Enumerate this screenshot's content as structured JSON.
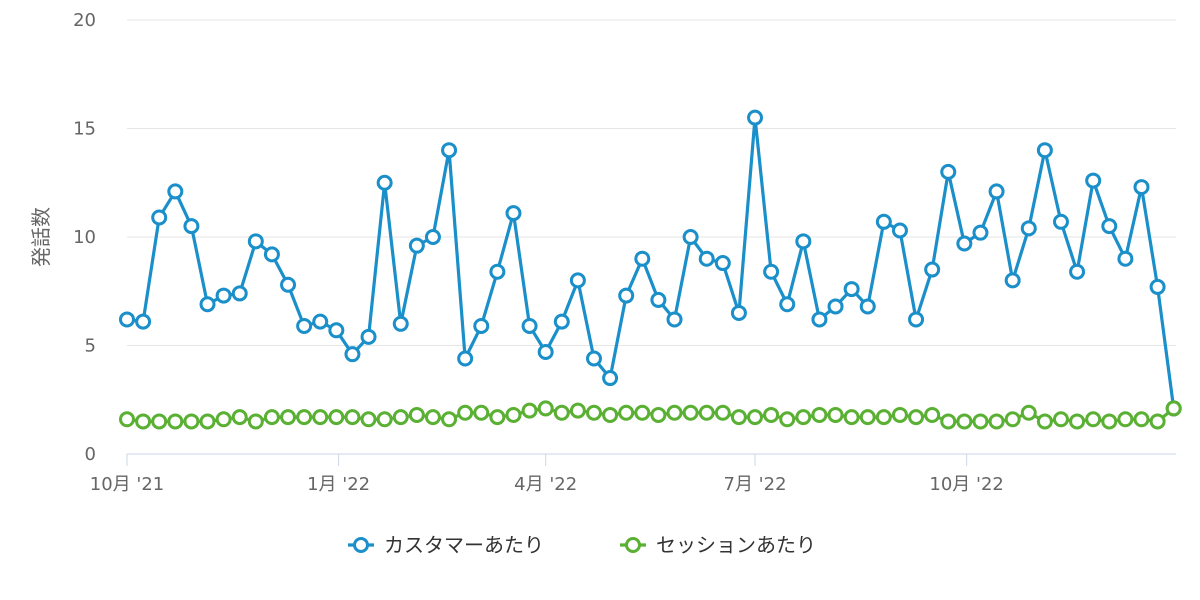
{
  "chart_data": {
    "type": "line",
    "ylabel": "発話数",
    "xlabel": "",
    "ylim": [
      0,
      20
    ],
    "y_ticks": [
      "0",
      "5",
      "10",
      "15",
      "20"
    ],
    "x_range": [
      "2021-10-01",
      "2022-12-31"
    ],
    "x_ticks": [
      {
        "label": "10月 '21",
        "date": "2021-10-01"
      },
      {
        "label": "1月 '22",
        "date": "2022-01-01"
      },
      {
        "label": "4月 '22",
        "date": "2022-04-01"
      },
      {
        "label": "7月 '22",
        "date": "2022-07-01"
      },
      {
        "label": "10月 '22",
        "date": "2022-10-01"
      }
    ],
    "grid": true,
    "legend_position": "bottom-center",
    "x": [
      "2021-10-01",
      "2021-10-08",
      "2021-10-15",
      "2021-10-22",
      "2021-10-29",
      "2021-11-05",
      "2021-11-12",
      "2021-11-19",
      "2021-11-26",
      "2021-12-03",
      "2021-12-10",
      "2021-12-17",
      "2021-12-24",
      "2021-12-31",
      "2022-01-07",
      "2022-01-14",
      "2022-01-21",
      "2022-01-28",
      "2022-02-04",
      "2022-02-11",
      "2022-02-18",
      "2022-02-25",
      "2022-03-04",
      "2022-03-11",
      "2022-03-18",
      "2022-03-25",
      "2022-04-01",
      "2022-04-08",
      "2022-04-15",
      "2022-04-22",
      "2022-04-29",
      "2022-05-06",
      "2022-05-13",
      "2022-05-20",
      "2022-05-27",
      "2022-06-03",
      "2022-06-10",
      "2022-06-17",
      "2022-06-24",
      "2022-07-01",
      "2022-07-08",
      "2022-07-15",
      "2022-07-22",
      "2022-07-29",
      "2022-08-05",
      "2022-08-12",
      "2022-08-19",
      "2022-08-26",
      "2022-09-02",
      "2022-09-09",
      "2022-09-16",
      "2022-09-23",
      "2022-09-30",
      "2022-10-07",
      "2022-10-14",
      "2022-10-21",
      "2022-10-28",
      "2022-11-04",
      "2022-11-11",
      "2022-11-18",
      "2022-11-25",
      "2022-12-02",
      "2022-12-09",
      "2022-12-16",
      "2022-12-23",
      "2022-12-30"
    ],
    "series": [
      {
        "name": "カスタマーあたり",
        "color": "#1a8fc9",
        "values": [
          6.2,
          6.1,
          10.9,
          12.1,
          10.5,
          6.9,
          7.3,
          7.4,
          9.8,
          9.2,
          7.8,
          5.9,
          6.1,
          5.7,
          4.6,
          5.4,
          12.5,
          6.0,
          9.6,
          10.0,
          14.0,
          4.4,
          5.9,
          8.4,
          11.1,
          5.9,
          4.7,
          6.1,
          8.0,
          4.4,
          3.5,
          7.3,
          9.0,
          7.1,
          6.2,
          10.0,
          9.0,
          8.8,
          6.5,
          15.5,
          8.4,
          6.9,
          9.8,
          6.2,
          6.8,
          7.6,
          6.8,
          10.7,
          10.3,
          6.2,
          8.5,
          13.0,
          9.7,
          10.2,
          12.1,
          8.0,
          10.4,
          14.0,
          10.7,
          8.4,
          12.6,
          10.5,
          9.0,
          12.3,
          7.7,
          2.1
        ]
      },
      {
        "name": "セッションあたり",
        "color": "#5ab033",
        "values": [
          1.6,
          1.5,
          1.5,
          1.5,
          1.5,
          1.5,
          1.6,
          1.7,
          1.5,
          1.7,
          1.7,
          1.7,
          1.7,
          1.7,
          1.7,
          1.6,
          1.6,
          1.7,
          1.8,
          1.7,
          1.6,
          1.9,
          1.9,
          1.7,
          1.8,
          2.0,
          2.1,
          1.9,
          2.0,
          1.9,
          1.8,
          1.9,
          1.9,
          1.8,
          1.9,
          1.9,
          1.9,
          1.9,
          1.7,
          1.7,
          1.8,
          1.6,
          1.7,
          1.8,
          1.8,
          1.7,
          1.7,
          1.7,
          1.8,
          1.7,
          1.8,
          1.5,
          1.5,
          1.5,
          1.5,
          1.6,
          1.9,
          1.5,
          1.6,
          1.5,
          1.6,
          1.5,
          1.6,
          1.6,
          1.5,
          2.1
        ]
      }
    ]
  }
}
